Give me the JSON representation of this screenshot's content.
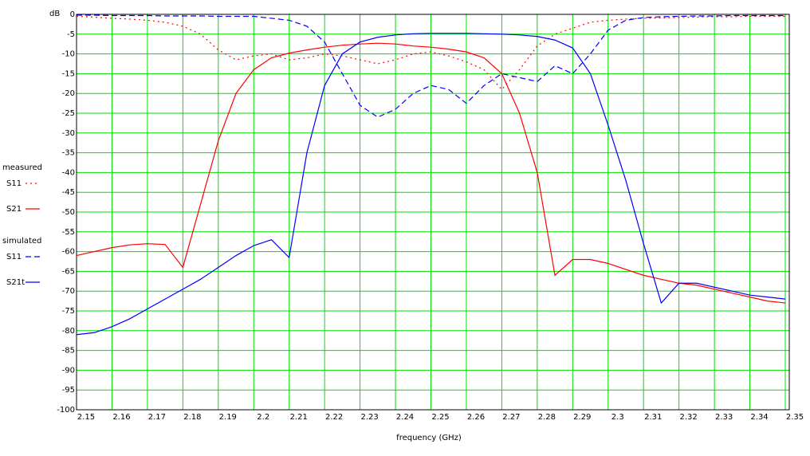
{
  "chart_data": {
    "type": "line",
    "y_label": "dB",
    "x_label": "frequency (GHz)",
    "x": [
      2.15,
      2.155,
      2.16,
      2.165,
      2.17,
      2.175,
      2.18,
      2.185,
      2.19,
      2.195,
      2.2,
      2.205,
      2.21,
      2.215,
      2.22,
      2.225,
      2.23,
      2.235,
      2.24,
      2.245,
      2.25,
      2.255,
      2.26,
      2.265,
      2.27,
      2.275,
      2.28,
      2.285,
      2.29,
      2.295,
      2.3,
      2.305,
      2.31,
      2.315,
      2.32,
      2.325,
      2.33,
      2.335,
      2.34,
      2.345,
      2.35
    ],
    "xlim": [
      2.15,
      2.35
    ],
    "xticks": [
      2.15,
      2.16,
      2.17,
      2.18,
      2.19,
      2.2,
      2.21,
      2.22,
      2.23,
      2.24,
      2.25,
      2.26,
      2.27,
      2.28,
      2.29,
      2.3,
      2.31,
      2.32,
      2.33,
      2.34,
      2.35
    ],
    "ylim": [
      -100,
      0
    ],
    "yticks": [
      0,
      -5,
      -10,
      -15,
      -20,
      -25,
      -30,
      -35,
      -40,
      -45,
      -50,
      -55,
      -60,
      -65,
      -70,
      -75,
      -80,
      -85,
      -90,
      -95,
      -100
    ],
    "grid": true,
    "legend_groups": [
      "measured",
      "simulated"
    ],
    "series": [
      {
        "name": "S11",
        "group": 0,
        "color": "#ff0000",
        "dash": "dotted",
        "values": [
          -0.5,
          -0.7,
          -1,
          -1.2,
          -1.5,
          -2,
          -3,
          -5,
          -9,
          -11.5,
          -10.5,
          -10,
          -11.5,
          -11,
          -10,
          -10.5,
          -11.5,
          -12.5,
          -11.5,
          -10,
          -9.5,
          -10.5,
          -12,
          -14,
          -19,
          -14,
          -8,
          -5,
          -3.5,
          -2,
          -1.5,
          -1.2,
          -1,
          -0.9,
          -0.8,
          -0.7,
          -0.6,
          -0.6,
          -0.5,
          -0.5,
          -0.5
        ]
      },
      {
        "name": "S21",
        "group": 0,
        "color": "#ff0000",
        "dash": "solid",
        "values": [
          -61,
          -60,
          -59,
          -58.3,
          -58,
          -58.2,
          -64,
          -48,
          -32,
          -20,
          -14,
          -11,
          -9.8,
          -9,
          -8.3,
          -7.8,
          -7.5,
          -7.3,
          -7.5,
          -8,
          -8.3,
          -8.8,
          -9.5,
          -11,
          -15,
          -25,
          -40,
          -66,
          -62,
          -62,
          -63,
          -64.5,
          -66,
          -67,
          -68,
          -68.5,
          -69.5,
          -70.5,
          -71.5,
          -72.5,
          -73
        ]
      },
      {
        "name": "S11",
        "group": 1,
        "color": "#0000ff",
        "dash": "dashed",
        "values": [
          -0.2,
          -0.2,
          -0.3,
          -0.3,
          -0.3,
          -0.4,
          -0.4,
          -0.4,
          -0.5,
          -0.5,
          -0.5,
          -1,
          -1.5,
          -3,
          -7,
          -15,
          -23,
          -26,
          -24,
          -20,
          -18,
          -19,
          -22.5,
          -18,
          -15,
          -16,
          -17,
          -13,
          -15,
          -10,
          -4,
          -1.5,
          -0.8,
          -0.6,
          -0.5,
          -0.4,
          -0.4,
          -0.3,
          -0.3,
          -0.3,
          -0.3
        ]
      },
      {
        "name": "S21t",
        "group": 1,
        "color": "#0000ff",
        "dash": "solid",
        "values": [
          -81,
          -80.5,
          -79,
          -77,
          -74.5,
          -72,
          -69.5,
          -67,
          -64,
          -61,
          -58.5,
          -57,
          -61.5,
          -35,
          -18,
          -10,
          -7,
          -5.8,
          -5.2,
          -4.9,
          -4.8,
          -4.8,
          -4.8,
          -4.9,
          -5,
          -5.2,
          -5.6,
          -6.5,
          -8.5,
          -15,
          -28,
          -42,
          -58,
          -73,
          -68,
          -68,
          -69,
          -70,
          -71,
          -71.5,
          -72
        ]
      }
    ]
  }
}
